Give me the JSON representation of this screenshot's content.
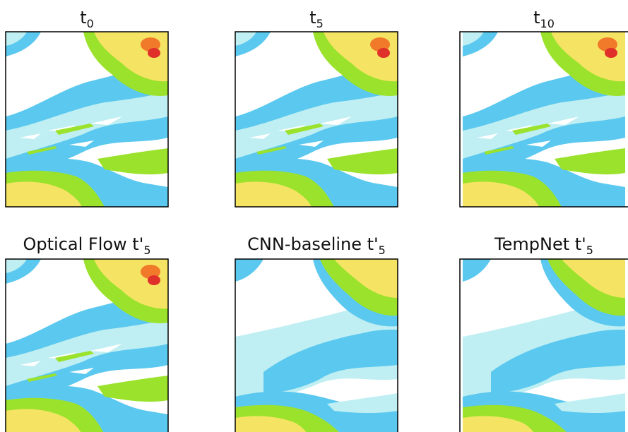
{
  "panels": [
    {
      "label": "t",
      "subscript": "0"
    },
    {
      "label": "t",
      "subscript": "5"
    },
    {
      "label": "t",
      "subscript": "10"
    },
    {
      "label": "Optical Flow t'",
      "subscript": "5"
    },
    {
      "label": "CNN-baseline t'",
      "subscript": "5"
    },
    {
      "label": "TempNet t'",
      "subscript": "5"
    }
  ]
}
